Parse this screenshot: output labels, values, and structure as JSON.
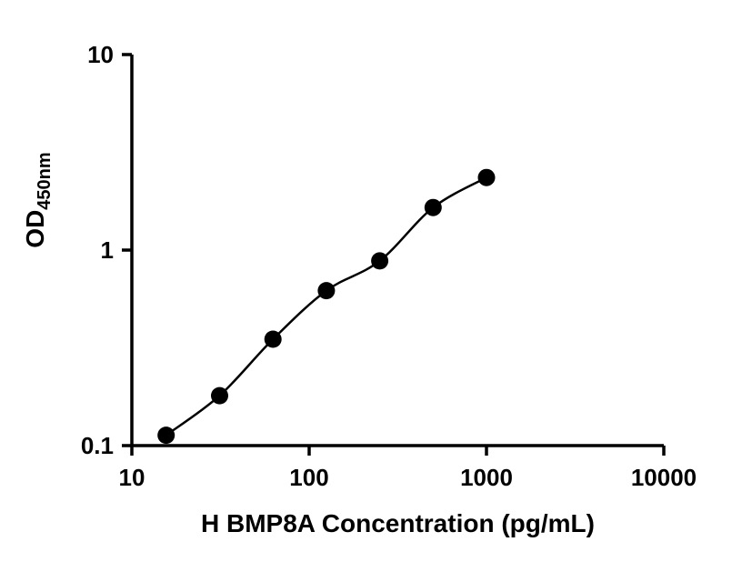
{
  "chart_data": {
    "type": "scatter",
    "title": "",
    "xlabel": "H BMP8A Concentration (pg/mL)",
    "ylabel": "OD",
    "ylabel_sub": "450nm",
    "xscale": "log",
    "yscale": "log",
    "xlim": [
      10,
      10000
    ],
    "ylim": [
      0.1,
      10
    ],
    "x_ticks": [
      10,
      100,
      1000,
      10000
    ],
    "x_tick_labels": [
      "10",
      "100",
      "1000",
      "10000"
    ],
    "y_ticks": [
      0.1,
      1,
      10
    ],
    "y_tick_labels": [
      "0.1",
      "1",
      "10"
    ],
    "grid": false,
    "legend": "none",
    "x": [
      15.6,
      31.25,
      62.5,
      125,
      250,
      500,
      1000
    ],
    "y": [
      0.113,
      0.18,
      0.35,
      0.62,
      0.88,
      1.65,
      2.35
    ],
    "marker": "circle",
    "marker_radius": 9.5,
    "marker_color": "#000000",
    "line_color": "#000000",
    "background_color": "#ffffff"
  }
}
